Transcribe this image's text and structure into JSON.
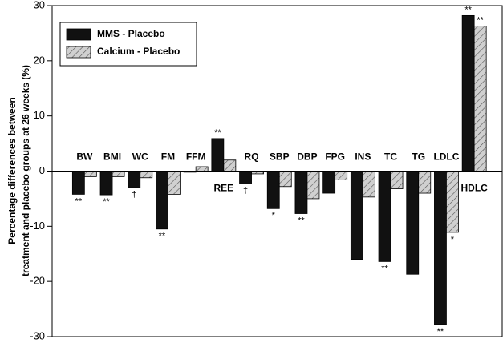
{
  "chart_data": {
    "type": "bar",
    "y_label": [
      "Percentage differences between",
      "treatment and placebo groups at 26 weeks (%)"
    ],
    "categories": [
      "BW",
      "BMI",
      "WC",
      "FM",
      "FFM",
      "REE",
      "RQ",
      "SBP",
      "DBP",
      "FPG",
      "INS",
      "TC",
      "TG",
      "LDLC",
      "HDLC"
    ],
    "series": [
      {
        "name": "MMS - Placebo",
        "color": "#111111",
        "values": [
          -4.2,
          -4.3,
          -3.0,
          -10.5,
          -0.2,
          5.9,
          -2.3,
          -6.8,
          -7.7,
          -4.0,
          -16.0,
          -16.4,
          -18.7,
          -27.8,
          28.2
        ],
        "significance": [
          "**",
          "**",
          "†",
          "**",
          null,
          "**",
          "‡",
          "*",
          "**",
          null,
          null,
          "**",
          null,
          "**",
          "**"
        ]
      },
      {
        "name": "Calcium - Placebo",
        "color": "#c8c8c8",
        "hatch": true,
        "values": [
          -1.0,
          -1.0,
          -1.2,
          -4.2,
          0.8,
          2.0,
          -0.5,
          -2.8,
          -5.0,
          -1.6,
          -4.7,
          -3.2,
          -4.0,
          -11.1,
          26.3
        ],
        "significance": [
          null,
          null,
          null,
          null,
          null,
          null,
          null,
          null,
          null,
          null,
          null,
          null,
          null,
          "*",
          "**"
        ]
      }
    ],
    "ylim": [
      -30,
      30
    ],
    "yticks": [
      -30,
      -20,
      -10,
      0,
      10,
      20,
      30
    ],
    "legend": "upper left"
  }
}
